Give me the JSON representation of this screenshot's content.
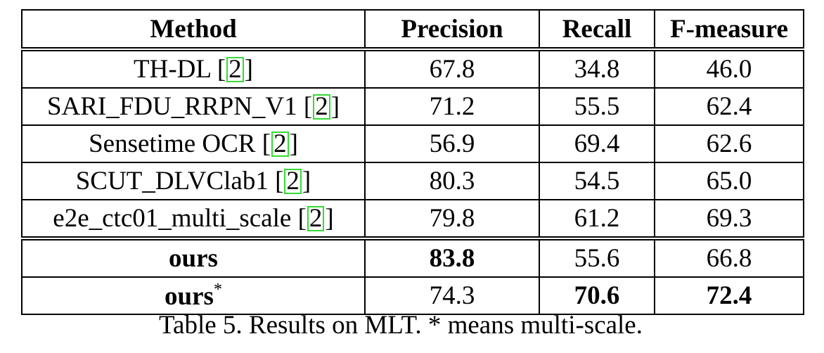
{
  "table": {
    "headers": [
      "Method",
      "Precision",
      "Recall",
      "F-measure"
    ],
    "rows": [
      {
        "method": "TH-DL",
        "ref": "2",
        "precision": "67.8",
        "recall": "34.8",
        "fmeasure": "46.0"
      },
      {
        "method": "SARI_FDU_RRPN_V1",
        "ref": "2",
        "precision": "71.2",
        "recall": "55.5",
        "fmeasure": "62.4"
      },
      {
        "method": "Sensetime OCR",
        "ref": "2",
        "precision": "56.9",
        "recall": "69.4",
        "fmeasure": "62.6"
      },
      {
        "method": "SCUT_DLVClab1",
        "ref": "2",
        "precision": "80.3",
        "recall": "54.5",
        "fmeasure": "65.0"
      },
      {
        "method": "e2e_ctc01_multi_scale",
        "ref": "2",
        "precision": "79.8",
        "recall": "61.2",
        "fmeasure": "69.3"
      },
      {
        "method": "ours",
        "precision": "83.8",
        "recall": "55.6",
        "fmeasure": "66.8"
      },
      {
        "method": "ours",
        "star": "*",
        "precision": "74.3",
        "recall": "70.6",
        "fmeasure": "72.4"
      }
    ]
  },
  "caption": "Table 5. Results on MLT. * means multi-scale."
}
